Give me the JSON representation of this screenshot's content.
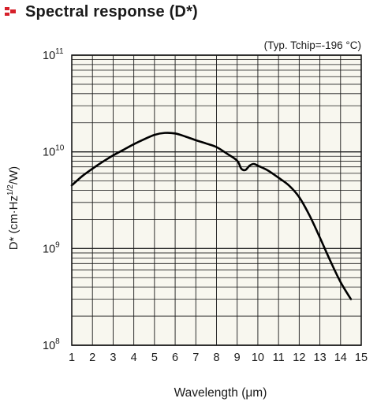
{
  "header": {
    "title": "Spectral response (D*)",
    "icon": "red-squares-icon",
    "icon_color": "#d6202a"
  },
  "chart_data": {
    "type": "line",
    "title": "Spectral response (D*)",
    "annotation": "(Typ. Tchip=-196 °C)",
    "xlabel": "Wavelength (μm)",
    "ylabel_parts": [
      "D* (cm·Hz",
      "1/2",
      "/W)"
    ],
    "x_ticks": [
      1,
      2,
      3,
      4,
      5,
      6,
      7,
      8,
      9,
      10,
      11,
      12,
      13,
      14,
      15
    ],
    "xlim": [
      1,
      15
    ],
    "yscale": "log",
    "ylim": [
      100000000,
      100000000000
    ],
    "y_ticks": [
      {
        "value": 100000000,
        "base": "10",
        "exp": "8"
      },
      {
        "value": 1000000000,
        "base": "10",
        "exp": "9"
      },
      {
        "value": 10000000000,
        "base": "10",
        "exp": "10"
      },
      {
        "value": 100000000000,
        "base": "10",
        "exp": "11"
      }
    ],
    "grid": true,
    "series": [
      {
        "x": [
          1.0,
          1.5,
          2.0,
          2.5,
          3.0,
          3.5,
          4.0,
          4.5,
          5.0,
          5.5,
          6.0,
          6.5,
          7.0,
          7.5,
          8.0,
          8.5,
          9.0,
          9.2,
          9.4,
          9.6,
          9.8,
          10.0,
          10.5,
          11.0,
          11.5,
          12.0,
          12.5,
          13.0,
          13.5,
          14.0,
          14.5
        ],
        "y": [
          4500000000,
          5600000000,
          6700000000,
          7900000000,
          9200000000,
          10500000000,
          12000000000,
          13500000000,
          15000000000,
          15700000000,
          15500000000,
          14400000000,
          13200000000,
          12200000000,
          11200000000,
          9600000000,
          8100000000,
          6700000000,
          6500000000,
          7200000000,
          7500000000,
          7200000000,
          6400000000,
          5400000000,
          4500000000,
          3400000000,
          2200000000,
          1300000000,
          750000000,
          450000000,
          300000000
        ]
      }
    ],
    "line_color": "#000000",
    "grid_color": "#1a1a1a",
    "plot_bg": "#f8f7ef"
  }
}
